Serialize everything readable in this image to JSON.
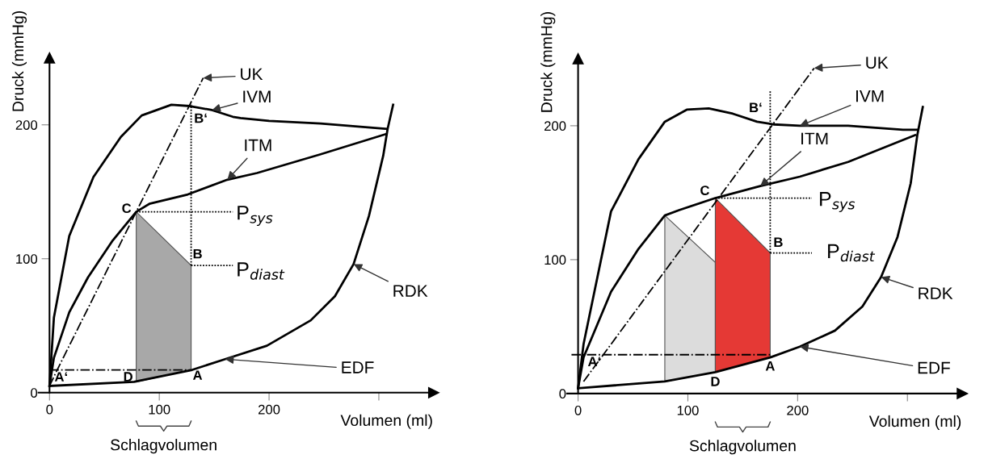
{
  "chart_data": [
    {
      "type": "line",
      "xlabel": "Volumen (ml)",
      "ylabel": "Druck (mmHg)",
      "xlim": [
        -10,
        350
      ],
      "ylim": [
        0,
        250
      ],
      "xticks": [
        0,
        100,
        200,
        {
          "value": 300,
          "label": null
        }
      ],
      "yticks": [
        0,
        100,
        200
      ],
      "series": [
        {
          "type": "area",
          "color": "#a8a8a8",
          "x": [
            79,
            129,
            129,
            79
          ],
          "values": [
            135,
            95,
            17,
            8
          ]
        },
        {
          "color": "#000000",
          "x": [
            0,
            4,
            18,
            40,
            65,
            84,
            111,
            128,
            148,
            167,
            174,
            200,
            247,
            307
          ],
          "values": [
            5,
            56,
            117,
            161,
            191,
            207,
            215,
            214,
            211,
            206,
            205,
            203,
            201,
            197
          ]
        },
        {
          "color": "#000000",
          "x": [
            0,
            4,
            18,
            35,
            57,
            79,
            91,
            126,
            162,
            189,
            247,
            306
          ],
          "values": [
            5,
            26,
            60,
            86,
            113,
            135,
            141,
            148,
            159,
            164,
            178,
            193
          ]
        },
        {
          "color": "#000000",
          "x": [
            0,
            77,
            130,
            160,
            198,
            238,
            260,
            277,
            291,
            304,
            308,
            313
          ],
          "values": [
            5,
            8,
            17,
            25,
            35,
            54,
            72,
            96,
            132,
            177,
            197,
            215
          ]
        },
        {
          "color": "#000000",
          "line_style": "dashdot",
          "x": [
            0,
            7,
            140
          ],
          "values": [
            5,
            17,
            235
          ]
        },
        {
          "color": "#000000",
          "line_style": "dashdot",
          "x": [
            0,
            129
          ],
          "values": [
            17,
            17
          ]
        },
        {
          "color": "#000000",
          "line_style": "dotted",
          "x": [
            79,
            167
          ],
          "values": [
            135,
            135
          ]
        },
        {
          "color": "#000000",
          "line_style": "dotted",
          "x": [
            129,
            167
          ],
          "values": [
            95,
            95
          ]
        },
        {
          "color": "#000000",
          "line_style": "dotted",
          "x": [
            129,
            129
          ],
          "values": [
            95,
            215
          ]
        }
      ],
      "annotations": [
        {
          "text": "UK",
          "x": 140,
          "y": 235
        },
        {
          "text": "IVM",
          "x": 148,
          "y": 211
        },
        {
          "text": "ITM",
          "x": 162,
          "y": 159
        },
        {
          "text": "RDK",
          "x": 277,
          "y": 96
        },
        {
          "text": "EDF",
          "x": 160,
          "y": 25
        },
        {
          "text": "P$_{sys}$",
          "x": 167,
          "y": 135
        },
        {
          "text": "P$_{diast}$",
          "x": 167,
          "y": 95
        },
        {
          "text": "A‘",
          "x": 7,
          "y": 17
        },
        {
          "text": "D",
          "x": 79,
          "y": 8
        },
        {
          "text": "A",
          "x": 129,
          "y": 17
        },
        {
          "text": "B",
          "x": 129,
          "y": 95
        },
        {
          "text": "B‘",
          "x": 129,
          "y": 215
        },
        {
          "text": "C",
          "x": 79,
          "y": 135
        },
        "Schlagvolumen"
      ]
    },
    {
      "type": "line",
      "xlabel": "Volumen (ml)",
      "ylabel": "Druck (mmHg)",
      "xlim": [
        -10,
        350
      ],
      "ylim": [
        0,
        250
      ],
      "xticks": [
        0,
        100,
        200,
        {
          "value": 300,
          "label": null
        }
      ],
      "yticks": [
        0,
        100,
        200
      ],
      "series": [
        {
          "type": "area",
          "color": "#dcdcdc",
          "x": [
            79,
            125,
            125,
            79
          ],
          "values": [
            133,
            98,
            16,
            9
          ]
        },
        {
          "type": "area",
          "color": "#e53935",
          "x": [
            125,
            175,
            175,
            125
          ],
          "values": [
            146,
            105,
            27,
            16
          ]
        },
        {
          "color": "#000000",
          "x": [
            0,
            5,
            30,
            55,
            79,
            99,
            119,
            141,
            163,
            178,
            202,
            246,
            296,
            309
          ],
          "values": [
            4,
            37,
            136,
            175,
            203,
            212,
            213,
            209,
            203,
            201,
            200,
            200,
            197,
            197
          ]
        },
        {
          "color": "#000000",
          "x": [
            0,
            5,
            30,
            55,
            79,
            92,
            125,
            166,
            202,
            246,
            307
          ],
          "values": [
            4,
            27,
            76,
            108,
            133,
            137,
            146,
            155,
            162,
            173,
            193
          ]
        },
        {
          "color": "#000000",
          "x": [
            0,
            79,
            125,
            175,
            202,
            234,
            259,
            276,
            291,
            303,
            309,
            314
          ],
          "values": [
            4,
            9,
            16,
            27,
            35,
            47,
            65,
            87,
            117,
            157,
            193,
            214
          ]
        },
        {
          "color": "#000000",
          "line_style": "dashdot",
          "x": [
            5,
            23,
            215
          ],
          "values": [
            9,
            29,
            243
          ]
        },
        {
          "color": "#000000",
          "line_style": "dashdot",
          "x": [
            -6,
            175
          ],
          "values": [
            29,
            29
          ]
        },
        {
          "color": "#000000",
          "line_style": "dotted",
          "x": [
            125,
            213
          ],
          "values": [
            146,
            146
          ]
        },
        {
          "color": "#000000",
          "line_style": "dotted",
          "x": [
            175,
            213
          ],
          "values": [
            105,
            105
          ]
        },
        {
          "color": "#000000",
          "line_style": "dotted",
          "x": [
            175,
            175
          ],
          "values": [
            105,
            226
          ]
        }
      ],
      "annotations": [
        {
          "text": "UK",
          "x": 215,
          "y": 243
        },
        {
          "text": "IVM",
          "x": 202,
          "y": 200
        },
        {
          "text": "ITM",
          "x": 166,
          "y": 155
        },
        {
          "text": "RDK",
          "x": 276,
          "y": 87
        },
        {
          "text": "EDF",
          "x": 202,
          "y": 35
        },
        {
          "text": "P$_{sys}$",
          "x": 213,
          "y": 146
        },
        {
          "text": "P$_{diast}$",
          "x": 213,
          "y": 105
        },
        {
          "text": "A‘",
          "x": 23,
          "y": 29
        },
        {
          "text": "D",
          "x": 125,
          "y": 16
        },
        {
          "text": "A",
          "x": 175,
          "y": 27
        },
        {
          "text": "B",
          "x": 175,
          "y": 105
        },
        {
          "text": "B‘",
          "x": 175,
          "y": 226
        },
        {
          "text": "C",
          "x": 125,
          "y": 146
        },
        "Schlagvolumen"
      ]
    }
  ]
}
